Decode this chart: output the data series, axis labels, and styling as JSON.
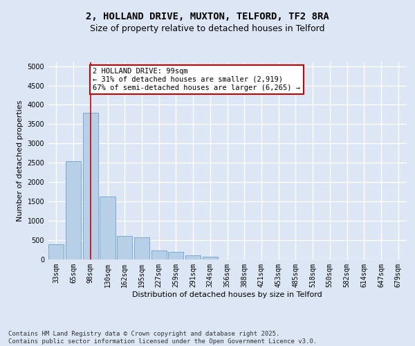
{
  "title": "2, HOLLAND DRIVE, MUXTON, TELFORD, TF2 8RA",
  "subtitle": "Size of property relative to detached houses in Telford",
  "xlabel": "Distribution of detached houses by size in Telford",
  "ylabel": "Number of detached properties",
  "categories": [
    "33sqm",
    "65sqm",
    "98sqm",
    "130sqm",
    "162sqm",
    "195sqm",
    "227sqm",
    "259sqm",
    "291sqm",
    "324sqm",
    "356sqm",
    "388sqm",
    "421sqm",
    "453sqm",
    "485sqm",
    "518sqm",
    "550sqm",
    "582sqm",
    "614sqm",
    "647sqm",
    "679sqm"
  ],
  "values": [
    400,
    2550,
    3800,
    1620,
    600,
    580,
    230,
    200,
    110,
    65,
    0,
    0,
    0,
    0,
    0,
    0,
    0,
    0,
    0,
    0,
    0
  ],
  "bar_color": "#b8cfe8",
  "bar_edgecolor": "#6da0d0",
  "vline_x_index": 2,
  "vline_color": "#cc0000",
  "annotation_text": "2 HOLLAND DRIVE: 99sqm\n← 31% of detached houses are smaller (2,919)\n67% of semi-detached houses are larger (6,265) →",
  "annotation_box_facecolor": "#ffffff",
  "annotation_box_edgecolor": "#cc0000",
  "ylim": [
    0,
    5100
  ],
  "yticks": [
    0,
    500,
    1000,
    1500,
    2000,
    2500,
    3000,
    3500,
    4000,
    4500,
    5000
  ],
  "fig_facecolor": "#dce6f5",
  "axes_facecolor": "#dce6f5",
  "grid_color": "#ffffff",
  "title_fontsize": 10,
  "subtitle_fontsize": 9,
  "axis_label_fontsize": 8,
  "tick_fontsize": 7,
  "ylabel_fontsize": 8,
  "annotation_fontsize": 7.5,
  "footer_text": "Contains HM Land Registry data © Crown copyright and database right 2025.\nContains public sector information licensed under the Open Government Licence v3.0.",
  "footer_fontsize": 6.5
}
